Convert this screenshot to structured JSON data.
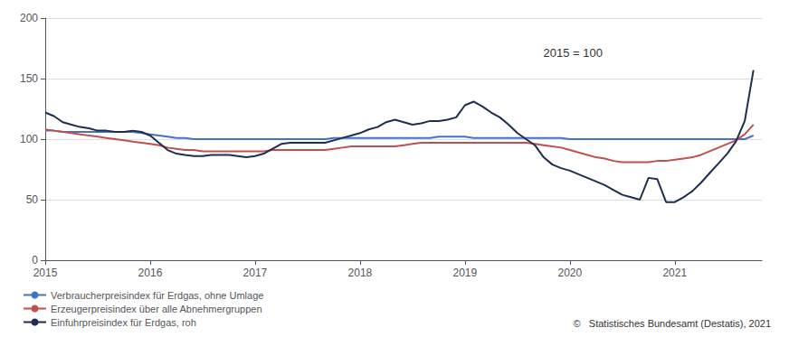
{
  "chart_data": {
    "type": "line",
    "annotations": [
      "2015 = 100",
      "©   Statistisches Bundesamt (Destatis), 2021"
    ],
    "x": [
      2015.0,
      2015.083,
      2015.167,
      2015.25,
      2015.333,
      2015.417,
      2015.5,
      2015.583,
      2015.667,
      2015.75,
      2015.833,
      2015.917,
      2016.0,
      2016.083,
      2016.167,
      2016.25,
      2016.333,
      2016.417,
      2016.5,
      2016.583,
      2016.667,
      2016.75,
      2016.833,
      2016.917,
      2017.0,
      2017.083,
      2017.167,
      2017.25,
      2017.333,
      2017.417,
      2017.5,
      2017.583,
      2017.667,
      2017.75,
      2017.833,
      2017.917,
      2018.0,
      2018.083,
      2018.167,
      2018.25,
      2018.333,
      2018.417,
      2018.5,
      2018.583,
      2018.667,
      2018.75,
      2018.833,
      2018.917,
      2019.0,
      2019.083,
      2019.167,
      2019.25,
      2019.333,
      2019.417,
      2019.5,
      2019.583,
      2019.667,
      2019.75,
      2019.833,
      2019.917,
      2020.0,
      2020.083,
      2020.167,
      2020.25,
      2020.333,
      2020.417,
      2020.5,
      2020.583,
      2020.667,
      2020.75,
      2020.833,
      2020.917,
      2021.0,
      2021.083,
      2021.167,
      2021.25,
      2021.333,
      2021.417,
      2021.5,
      2021.583,
      2021.667,
      2021.75
    ],
    "series": [
      {
        "name": "Verbraucherpreisindex für Erdgas, ohne Umlage",
        "color": "#4472c4",
        "values": [
          107,
          107,
          106,
          106,
          106,
          106,
          106,
          106,
          106,
          106,
          106,
          105,
          104,
          103,
          102,
          101,
          101,
          100,
          100,
          100,
          100,
          100,
          100,
          100,
          100,
          100,
          100,
          100,
          100,
          100,
          100,
          100,
          100,
          101,
          101,
          101,
          101,
          101,
          101,
          101,
          101,
          101,
          101,
          101,
          101,
          102,
          102,
          102,
          102,
          101,
          101,
          101,
          101,
          101,
          101,
          101,
          101,
          101,
          101,
          101,
          100,
          100,
          100,
          100,
          100,
          100,
          100,
          100,
          100,
          100,
          100,
          100,
          100,
          100,
          100,
          100,
          100,
          100,
          100,
          100,
          100,
          103
        ]
      },
      {
        "name": "Erzeugerpreisindex über alle Abnehmergruppen",
        "color": "#c0504d",
        "values": [
          108,
          107,
          106,
          105,
          104,
          103,
          102,
          101,
          100,
          99,
          98,
          97,
          96,
          95,
          93,
          92,
          91,
          91,
          90,
          90,
          90,
          90,
          90,
          90,
          90,
          90,
          91,
          91,
          91,
          91,
          91,
          91,
          91,
          92,
          93,
          94,
          94,
          94,
          94,
          94,
          94,
          95,
          96,
          97,
          97,
          97,
          97,
          97,
          97,
          97,
          97,
          97,
          97,
          97,
          97,
          97,
          96,
          95,
          94,
          93,
          91,
          89,
          87,
          85,
          84,
          82,
          81,
          81,
          81,
          81,
          82,
          82,
          83,
          84,
          85,
          87,
          90,
          93,
          96,
          99,
          104,
          112
        ]
      },
      {
        "name": "Einfuhrpreisindex für Erdgas, roh",
        "color": "#1f2d4e",
        "values": [
          122,
          119,
          114,
          112,
          110,
          109,
          107,
          107,
          106,
          106,
          107,
          106,
          103,
          97,
          91,
          88,
          87,
          86,
          86,
          87,
          87,
          87,
          86,
          85,
          86,
          88,
          92,
          96,
          97,
          97,
          97,
          97,
          97,
          99,
          101,
          103,
          105,
          108,
          110,
          114,
          116,
          114,
          112,
          113,
          115,
          115,
          116,
          118,
          128,
          131,
          127,
          122,
          118,
          112,
          105,
          100,
          95,
          85,
          79,
          76,
          74,
          71,
          68,
          65,
          62,
          58,
          54,
          52,
          50,
          68,
          67,
          48,
          48,
          52,
          57,
          64,
          72,
          80,
          88,
          98,
          115,
          157
        ]
      }
    ],
    "xlim": [
      2015.0,
      2021.83
    ],
    "xticks": [
      2015,
      2016,
      2017,
      2018,
      2019,
      2020,
      2021
    ],
    "ylim": [
      0,
      200
    ],
    "yticks": [
      0,
      50,
      100,
      150,
      200
    ],
    "grid": true,
    "legend": "lower left"
  }
}
